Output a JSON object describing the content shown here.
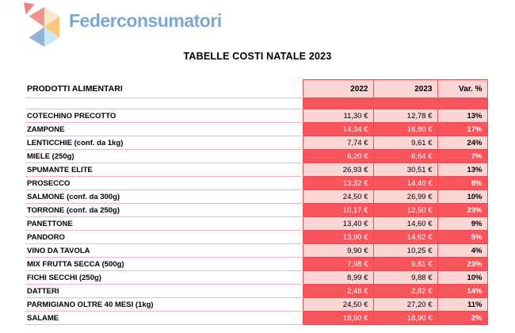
{
  "logo": {
    "wordmark": "Federconsumatori",
    "colors": {
      "wordmark_blue": "#7aa6d6",
      "triangle_red": "#ef9290",
      "triangle_small_red": "#ea8585",
      "triangle_pale_yellow": "#fbe7c4",
      "triangle_orange": "#f9c87c",
      "triangle_pale_blue": "#cde7f2",
      "triangle_steel_blue": "#92b3d8"
    }
  },
  "title": "TABELLE COSTI NATALE 2023",
  "palette": {
    "red_fill": "#f8545c",
    "pink_fill": "#fbd4d4",
    "border_red": "#f04a52",
    "line_pink": "#f5b6b9"
  },
  "table": {
    "product_header": "PRODOTTI ALIMENTARI",
    "columns": [
      "2022",
      "2023",
      "Var. %"
    ],
    "rows": [
      {
        "name": "COTECHINO PRECOTTO",
        "y2022": "11,30 €",
        "y2023": "12,78 €",
        "var": "13%"
      },
      {
        "name": "ZAMPONE",
        "y2022": "14,34 €",
        "y2023": "16,80 €",
        "var": "17%"
      },
      {
        "name": "LENTICCHIE (conf. da 1kg)",
        "y2022": "7,74 €",
        "y2023": "9,61 €",
        "var": "24%"
      },
      {
        "name": "MIELE (250g)",
        "y2022": "6,20 €",
        "y2023": "6,64 €",
        "var": "7%"
      },
      {
        "name": "SPUMANTE ELITE",
        "y2022": "26,93 €",
        "y2023": "30,51 €",
        "var": "13%"
      },
      {
        "name": "PROSECCO",
        "y2022": "13,32 €",
        "y2023": "14,40 €",
        "var": "8%"
      },
      {
        "name": "SALMONE (conf. da 300g)",
        "y2022": "24,50 €",
        "y2023": "26,99 €",
        "var": "10%"
      },
      {
        "name": "TORRONE (conf. da 250g)",
        "y2022": "10,17 €",
        "y2023": "12,50 €",
        "var": "23%"
      },
      {
        "name": "PANETTONE",
        "y2022": "13,40 €",
        "y2023": "14,60 €",
        "var": "9%"
      },
      {
        "name": "PANDORO",
        "y2022": "13,90 €",
        "y2023": "14,62 €",
        "var": "5%"
      },
      {
        "name": "VINO DA TAVOLA",
        "y2022": "9,90 €",
        "y2023": "10,25 €",
        "var": "4%"
      },
      {
        "name": "MIX FRUTTA SECCA (500g)",
        "y2022": "7,98 €",
        "y2023": "9,81 €",
        "var": "23%"
      },
      {
        "name": "FICHI SECCHI (250g)",
        "y2022": "8,99 €",
        "y2023": "9,88 €",
        "var": "10%"
      },
      {
        "name": "DATTERI",
        "y2022": "2,48 €",
        "y2023": "2,82 €",
        "var": "14%"
      },
      {
        "name": "PARMIGIANO OLTRE 40 MESI (1kg)",
        "y2022": "24,50 €",
        "y2023": "27,20 €",
        "var": "11%"
      },
      {
        "name": "SALAME",
        "y2022": "18,50 €",
        "y2023": "18,90 €",
        "var": "2%"
      }
    ]
  }
}
